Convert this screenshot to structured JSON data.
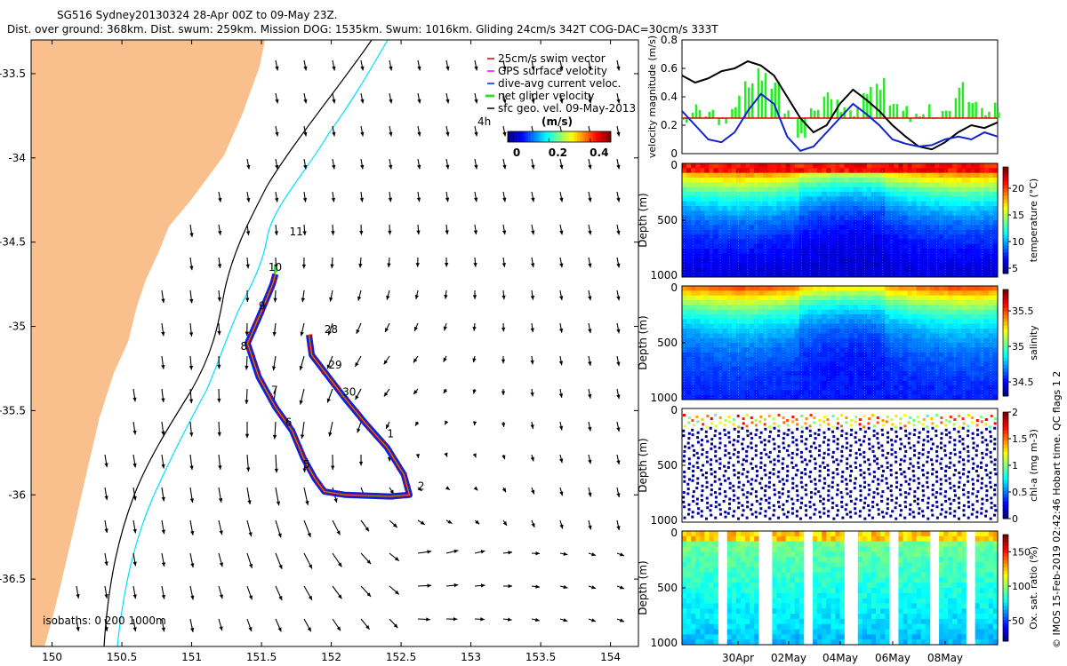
{
  "title_line1": "SG516 Sydney20130324 28-Apr 00Z to 09-May 23Z.",
  "title_line2": "Dist. over ground: 368km. Dist. swum: 259km. Mission DOG: 1535km. Swum: 1016km. Gliding 24cm/s 342T COG-DAC=30cm/s 333T",
  "colors": {
    "land": "#f9c08e",
    "shelf_isobath": "#00e0ff",
    "deep_isobath": "#000000",
    "glider_red": "#d40000",
    "glider_blue": "#0022ee",
    "glider_green": "#33dd33",
    "gps_magenta": "#ff00ff",
    "speed_series_green": "#22ee22",
    "speed_series_black": "#000000",
    "speed_series_blue": "#1022cc",
    "speed_series_red": "#dd0000"
  },
  "map": {
    "xticks": [
      "150",
      "150.5",
      "151",
      "151.5",
      "152",
      "152.5",
      "153",
      "153.5",
      "154"
    ],
    "yticks": [
      "-33.5",
      "-34",
      "-34.5",
      "-35",
      "-35.5",
      "-36",
      "-36.5"
    ],
    "xlim": [
      149.85,
      154.2
    ],
    "ylim": [
      -36.9,
      -33.3
    ],
    "legend": [
      {
        "label": "25cm/s swim vector",
        "color": "#d40000"
      },
      {
        "label": "GPS surface velocity",
        "color": "#ff00ff"
      },
      {
        "label": "dive-avg current veloc.",
        "color": "#0022ee"
      },
      {
        "label": "net glider velocity",
        "color": "#33dd33"
      },
      {
        "label": "sfc geo. vel. 09-May-2013",
        "color": "#000000"
      }
    ],
    "colorbar_title": "(m/s)",
    "colorbar_ticks": [
      "0",
      "0.2",
      "0.4"
    ],
    "isobath_label": "isobaths: 0   200  1000m",
    "extra_label": "4h",
    "day_labels": [
      {
        "text": "11",
        "lon": 151.7,
        "lat": -34.46
      },
      {
        "text": "10",
        "lon": 151.55,
        "lat": -34.67
      },
      {
        "text": "9",
        "lon": 151.48,
        "lat": -34.9
      },
      {
        "text": "8",
        "lon": 151.35,
        "lat": -35.14
      },
      {
        "text": "7",
        "lon": 151.57,
        "lat": -35.4
      },
      {
        "text": "6",
        "lon": 151.67,
        "lat": -35.59
      },
      {
        "text": "5",
        "lon": 151.8,
        "lat": -35.84
      },
      {
        "text": "2",
        "lon": 152.62,
        "lat": -35.97
      },
      {
        "text": "1",
        "lon": 152.4,
        "lat": -35.66
      },
      {
        "text": "28",
        "lon": 151.95,
        "lat": -35.04
      },
      {
        "text": "29",
        "lon": 151.98,
        "lat": -35.25
      },
      {
        "text": "30",
        "lon": 152.08,
        "lat": -35.41
      }
    ]
  },
  "chart_data": [
    {
      "type": "line",
      "ylabel": "velocity magnitude (m/s)",
      "ylim": [
        0,
        0.8
      ],
      "yticks": [
        "0",
        "0.2",
        "0.4",
        "0.6",
        "0.8"
      ],
      "x": [
        0,
        0.5,
        1,
        1.5,
        2,
        2.5,
        3,
        3.5,
        4,
        4.5,
        5,
        5.5,
        6,
        6.5,
        7,
        7.5,
        8,
        8.5,
        9,
        9.5,
        10,
        10.5,
        11,
        11.5,
        12
      ],
      "series": [
        {
          "values": [
            0.25,
            0.3,
            0.28,
            0.22,
            0.35,
            0.45,
            0.55,
            0.5,
            0.25,
            0.15,
            0.3,
            0.4,
            0.35,
            0.3,
            0.45,
            0.5,
            0.3,
            0.28,
            0.25,
            0.3,
            0.35,
            0.45,
            0.4,
            0.3,
            0.3
          ],
          "color": "#22ee22"
        },
        {
          "values": [
            0.55,
            0.5,
            0.53,
            0.58,
            0.6,
            0.65,
            0.62,
            0.55,
            0.4,
            0.25,
            0.15,
            0.2,
            0.35,
            0.45,
            0.38,
            0.3,
            0.2,
            0.12,
            0.05,
            0.03,
            0.08,
            0.15,
            0.2,
            0.18,
            0.22
          ],
          "color": "#000000"
        },
        {
          "values": [
            0.3,
            0.2,
            0.1,
            0.08,
            0.15,
            0.3,
            0.42,
            0.35,
            0.12,
            0.02,
            0.05,
            0.15,
            0.25,
            0.35,
            0.28,
            0.2,
            0.1,
            0.07,
            0.05,
            0.06,
            0.1,
            0.12,
            0.1,
            0.15,
            0.12
          ],
          "color": "#1022cc"
        },
        {
          "values": [
            0.25,
            0.25,
            0.25,
            0.25,
            0.25,
            0.25,
            0.25,
            0.25,
            0.25,
            0.25,
            0.25,
            0.25,
            0.25,
            0.25,
            0.25,
            0.25,
            0.25,
            0.25,
            0.25,
            0.25,
            0.25,
            0.25,
            0.25,
            0.25,
            0.25
          ],
          "color": "#dd0000"
        }
      ]
    },
    {
      "type": "heatmap",
      "ylabel": "Depth (m)",
      "yticks": [
        "0",
        "500",
        "1000"
      ],
      "colorbar_label": "temperature (°C)",
      "colorbar_ticks": [
        "5",
        "10",
        "15",
        "20"
      ],
      "range": [
        4,
        24
      ],
      "surface_value": 21,
      "deep_value": 5
    },
    {
      "type": "heatmap",
      "ylabel": "Depth (m)",
      "yticks": [
        "0",
        "500",
        "1000"
      ],
      "colorbar_label": "salinity",
      "colorbar_ticks": [
        "34.5",
        "35",
        "35.5"
      ],
      "range": [
        34.3,
        35.8
      ],
      "surface_value": 35.4,
      "deep_value": 34.5
    },
    {
      "type": "heatmap",
      "ylabel": "Depth (m)",
      "yticks": [
        "0",
        "500",
        "1000"
      ],
      "colorbar_label": "chl-a (mg m-3)",
      "colorbar_ticks": [
        "0",
        "0.5",
        "1",
        "1.5",
        "2"
      ],
      "range": [
        0,
        2
      ],
      "surface_value": 1.2,
      "deep_value": 0
    },
    {
      "type": "heatmap",
      "ylabel": "Depth (m)",
      "yticks": [
        "0",
        "500",
        "1000"
      ],
      "colorbar_label": "Ox. sat. ratio (%)",
      "colorbar_ticks": [
        "50",
        "100",
        "150"
      ],
      "range": [
        20,
        175
      ],
      "surface_value": 110,
      "deep_value": 60
    }
  ],
  "time_axis_labels": [
    "30Apr",
    "02May",
    "04May",
    "06May",
    "08May"
  ],
  "credit": "© IMOS 15-Feb-2019 02:42:46 Hobart time. QC flags 1  2"
}
